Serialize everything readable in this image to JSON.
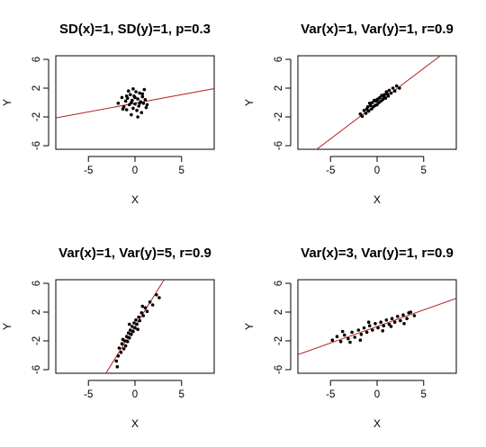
{
  "chart_data": [
    {
      "type": "scatter",
      "title": "SD(x)=1, SD(y)=1, p=0.3",
      "xlabel": "X",
      "ylabel": "Y",
      "xlim": [
        -8.5,
        8.5
      ],
      "ylim": [
        -6.5,
        6.5
      ],
      "xticks": [
        -5,
        0,
        5
      ],
      "yticks": [
        -6,
        -2,
        2,
        6
      ],
      "fit_line": {
        "slope": 0.24,
        "intercept": -0.1,
        "color": "#b22222"
      },
      "points": [
        [
          -1.8,
          -0.1
        ],
        [
          -1.4,
          0.7
        ],
        [
          -1.2,
          -0.6
        ],
        [
          -1.0,
          0.2
        ],
        [
          -0.9,
          -1.0
        ],
        [
          -0.8,
          0.6
        ],
        [
          -0.6,
          -0.3
        ],
        [
          -0.5,
          1.1
        ],
        [
          -0.4,
          -1.7
        ],
        [
          -0.3,
          0.3
        ],
        [
          -0.2,
          -0.8
        ],
        [
          -0.1,
          0.9
        ],
        [
          0.0,
          -0.2
        ],
        [
          0.1,
          1.5
        ],
        [
          0.2,
          -1.1
        ],
        [
          0.3,
          0.5
        ],
        [
          0.4,
          -0.5
        ],
        [
          0.5,
          1.3
        ],
        [
          0.6,
          0.1
        ],
        [
          0.7,
          -1.4
        ],
        [
          0.8,
          0.8
        ],
        [
          0.9,
          -0.1
        ],
        [
          1.0,
          1.8
        ],
        [
          1.1,
          0.4
        ],
        [
          1.2,
          -0.7
        ],
        [
          -0.7,
          1.6
        ],
        [
          0.3,
          -2.0
        ],
        [
          -1.3,
          -0.9
        ],
        [
          0.0,
          0.7
        ],
        [
          0.5,
          -0.1
        ],
        [
          -0.2,
          1.9
        ],
        [
          0.8,
          1.2
        ],
        [
          -0.9,
          0.9
        ],
        [
          1.3,
          -0.3
        ],
        [
          -0.4,
          0.0
        ]
      ]
    },
    {
      "type": "scatter",
      "title": "Var(x)=1, Var(y)=1, r=0.9",
      "xlabel": "X",
      "ylabel": "Y",
      "xlim": [
        -8.5,
        8.5
      ],
      "ylim": [
        -6.5,
        6.5
      ],
      "xticks": [
        -5,
        0,
        5
      ],
      "yticks": [
        -6,
        -2,
        2,
        6
      ],
      "fit_line": {
        "slope": 0.98,
        "intercept": -0.15,
        "color": "#b22222"
      },
      "points": [
        [
          -1.8,
          -1.6
        ],
        [
          -1.6,
          -1.9
        ],
        [
          -1.4,
          -1.1
        ],
        [
          -1.2,
          -1.5
        ],
        [
          -1.0,
          -0.6
        ],
        [
          -0.9,
          -1.2
        ],
        [
          -0.7,
          -0.4
        ],
        [
          -0.6,
          -0.9
        ],
        [
          -0.5,
          0.0
        ],
        [
          -0.4,
          -0.6
        ],
        [
          -0.3,
          0.3
        ],
        [
          -0.2,
          -0.4
        ],
        [
          -0.1,
          0.2
        ],
        [
          0.0,
          -0.3
        ],
        [
          0.1,
          0.5
        ],
        [
          0.2,
          0.0
        ],
        [
          0.3,
          0.7
        ],
        [
          0.4,
          0.2
        ],
        [
          0.5,
          1.0
        ],
        [
          0.6,
          0.4
        ],
        [
          0.8,
          1.1
        ],
        [
          0.9,
          0.6
        ],
        [
          1.0,
          1.5
        ],
        [
          1.2,
          0.9
        ],
        [
          1.3,
          1.7
        ],
        [
          1.5,
          1.3
        ],
        [
          1.7,
          2.0
        ],
        [
          1.9,
          1.6
        ],
        [
          2.1,
          2.3
        ],
        [
          2.4,
          2.0
        ],
        [
          -1.1,
          -0.9
        ],
        [
          0.7,
          0.8
        ],
        [
          -0.8,
          -0.1
        ],
        [
          1.1,
          1.2
        ],
        [
          0.0,
          0.4
        ]
      ]
    },
    {
      "type": "scatter",
      "title": "Var(x)=1, Var(y)=5, r=0.9",
      "xlabel": "X",
      "ylabel": "Y",
      "xlim": [
        -8.5,
        8.5
      ],
      "ylim": [
        -6.5,
        6.5
      ],
      "xticks": [
        -5,
        0,
        5
      ],
      "yticks": [
        -6,
        -2,
        2,
        6
      ],
      "fit_line": {
        "slope": 2.08,
        "intercept": 0.0,
        "color": "#b22222"
      },
      "points": [
        [
          -2.0,
          -4.8
        ],
        [
          -1.8,
          -4.1
        ],
        [
          -1.7,
          -3.0
        ],
        [
          -1.5,
          -3.6
        ],
        [
          -1.4,
          -2.4
        ],
        [
          -1.2,
          -3.1
        ],
        [
          -1.1,
          -2.0
        ],
        [
          -1.0,
          -2.7
        ],
        [
          -0.9,
          -1.4
        ],
        [
          -0.8,
          -2.1
        ],
        [
          -0.7,
          -0.9
        ],
        [
          -0.6,
          -1.6
        ],
        [
          -0.5,
          -0.5
        ],
        [
          -0.4,
          -1.1
        ],
        [
          -0.3,
          0.0
        ],
        [
          -0.2,
          -0.7
        ],
        [
          -0.1,
          0.5
        ],
        [
          0.0,
          -0.2
        ],
        [
          0.1,
          0.9
        ],
        [
          0.2,
          0.3
        ],
        [
          0.4,
          1.3
        ],
        [
          0.5,
          0.8
        ],
        [
          0.7,
          1.9
        ],
        [
          0.9,
          1.5
        ],
        [
          1.1,
          2.6
        ],
        [
          1.3,
          2.1
        ],
        [
          1.6,
          3.4
        ],
        [
          1.9,
          3.0
        ],
        [
          2.3,
          4.4
        ],
        [
          2.6,
          4.0
        ],
        [
          -1.9,
          -5.6
        ],
        [
          -0.6,
          0.3
        ],
        [
          0.3,
          -0.4
        ],
        [
          -1.3,
          -1.8
        ],
        [
          0.8,
          2.8
        ]
      ]
    },
    {
      "type": "scatter",
      "title": "Var(x)=3, Var(y)=1, r=0.9",
      "xlabel": "X",
      "ylabel": "Y",
      "xlim": [
        -8.5,
        8.5
      ],
      "ylim": [
        -6.5,
        6.5
      ],
      "xticks": [
        -5,
        0,
        5
      ],
      "yticks": [
        -6,
        -2,
        2,
        6
      ],
      "fit_line": {
        "slope": 0.46,
        "intercept": 0.0,
        "color": "#b22222"
      },
      "points": [
        [
          -4.8,
          -1.9
        ],
        [
          -4.3,
          -1.4
        ],
        [
          -3.9,
          -2.1
        ],
        [
          -3.5,
          -1.2
        ],
        [
          -3.1,
          -1.7
        ],
        [
          -2.7,
          -0.8
        ],
        [
          -2.4,
          -1.5
        ],
        [
          -2.0,
          -0.5
        ],
        [
          -1.7,
          -1.1
        ],
        [
          -1.4,
          -0.2
        ],
        [
          -1.1,
          -0.8
        ],
        [
          -0.8,
          0.1
        ],
        [
          -0.5,
          -0.5
        ],
        [
          -0.2,
          0.4
        ],
        [
          0.1,
          -0.2
        ],
        [
          0.4,
          0.6
        ],
        [
          0.7,
          0.1
        ],
        [
          1.0,
          0.9
        ],
        [
          1.3,
          0.3
        ],
        [
          1.6,
          1.1
        ],
        [
          1.9,
          0.6
        ],
        [
          2.2,
          1.4
        ],
        [
          2.5,
          0.8
        ],
        [
          2.8,
          1.6
        ],
        [
          3.2,
          1.1
        ],
        [
          3.6,
          2.0
        ],
        [
          4.0,
          1.5
        ],
        [
          -2.9,
          -2.2
        ],
        [
          -0.9,
          0.6
        ],
        [
          0.6,
          -0.6
        ],
        [
          -3.7,
          -0.7
        ],
        [
          1.5,
          0.0
        ],
        [
          2.9,
          0.4
        ],
        [
          -1.8,
          -1.9
        ],
        [
          3.4,
          1.9
        ]
      ]
    }
  ]
}
